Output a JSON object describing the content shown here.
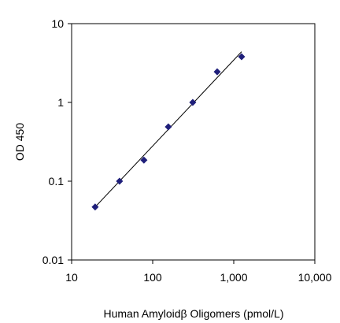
{
  "chart_data": {
    "type": "scatter",
    "title": "",
    "xlabel": "Human Amyloidβ Oligomers  (pmol/L)",
    "ylabel": "OD 450",
    "x_scale": "log",
    "y_scale": "log",
    "xlim": [
      10,
      10000
    ],
    "ylim": [
      0.01,
      10
    ],
    "x_ticks": [
      10,
      100,
      1000,
      10000
    ],
    "x_tick_labels": [
      "10",
      "100",
      "1,000",
      "10,000"
    ],
    "y_ticks": [
      0.01,
      0.1,
      1,
      10
    ],
    "y_tick_labels": [
      "0.01",
      "0.1",
      "1",
      "10"
    ],
    "grid": false,
    "legend": false,
    "marker": "diamond",
    "marker_color": "#1f1f7a",
    "line_color": "#000000",
    "points": [
      {
        "x": 19.5,
        "y": 0.047
      },
      {
        "x": 39,
        "y": 0.1
      },
      {
        "x": 78,
        "y": 0.185
      },
      {
        "x": 156,
        "y": 0.49
      },
      {
        "x": 312,
        "y": 1.0
      },
      {
        "x": 625,
        "y": 2.45
      },
      {
        "x": 1250,
        "y": 3.8
      }
    ],
    "fit_line": [
      {
        "x": 19.5,
        "y": 0.047
      },
      {
        "x": 1250,
        "y": 4.4
      }
    ]
  }
}
